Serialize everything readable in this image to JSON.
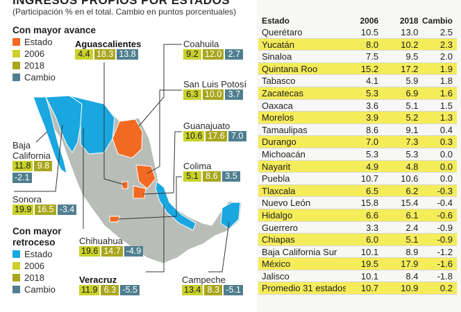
{
  "header": {
    "title": "INGRESOS PROPIOS POR ESTADOS",
    "subtitle": "(Participación % en el total. Cambio en puntos porcentuales)"
  },
  "colors": {
    "estado_avance": "#f26a21",
    "estado_retroceso": "#1aa7e0",
    "y2006": "#c9d12c",
    "y2018": "#a9a61d",
    "cambio": "#4f7f8f",
    "highlight_row": "#f5ec5a"
  },
  "legend_avance": {
    "heading": "Con mayor avance",
    "items": [
      "Estado",
      "2006",
      "2018",
      "Cambio"
    ]
  },
  "legend_retroceso": {
    "heading_line1": "Con mayor",
    "heading_line2": "retroceso",
    "items": [
      "Estado",
      "2006",
      "2018",
      "Cambio"
    ]
  },
  "callouts": {
    "aguascalientes": {
      "name": "Aguascalientes",
      "v2006": "4.4",
      "v2018": "18.3",
      "cambio": "13.8"
    },
    "coahuila": {
      "name": "Coahuila",
      "v2006": "9.2",
      "v2018": "12.0",
      "cambio": "2.7"
    },
    "san_luis_potosi": {
      "name": "San Luis Potosí",
      "v2006": "6.3",
      "v2018": "10.0",
      "cambio": "3.7"
    },
    "guanajuato": {
      "name": "Guanajuato",
      "v2006": "10.6",
      "v2018": "17.6",
      "cambio": "7.0"
    },
    "colima": {
      "name": "Colima",
      "v2006": "5.1",
      "v2018": "8.6",
      "cambio": "3.5"
    },
    "baja_california": {
      "name_line1": "Baja",
      "name_line2": "California",
      "v2006": "11.8",
      "v2018": "9.8",
      "cambio": "-2.1"
    },
    "sonora": {
      "name": "Sonora",
      "v2006": "19.9",
      "v2018": "16.5",
      "cambio": "-3.4"
    },
    "chihuahua": {
      "name": "Chihuahua",
      "v2006": "19.6",
      "v2018": "14.7",
      "cambio": "-4.9"
    },
    "veracruz": {
      "name": "Veracruz",
      "v2006": "11.9",
      "v2018": "6.3",
      "cambio": "-5.5"
    },
    "campeche": {
      "name": "Campeche",
      "v2006": "13.4",
      "v2018": "8.3",
      "cambio": "-5.1"
    }
  },
  "table": {
    "headers": [
      "Estado",
      "2006",
      "2018",
      "Cambio"
    ],
    "rows": [
      [
        "Querétaro",
        "10.5",
        "13.0",
        "2.5"
      ],
      [
        "Yucatán",
        "8.0",
        "10.2",
        "2.3"
      ],
      [
        "Sinaloa",
        "7.5",
        "9.5",
        "2.0"
      ],
      [
        "Quintana Roo",
        "15.2",
        "17.2",
        "1.9"
      ],
      [
        "Tabasco",
        "4.1",
        "5.9",
        "1.8"
      ],
      [
        "Zacatecas",
        "5.3",
        "6.9",
        "1.6"
      ],
      [
        "Oaxaca",
        "3.6",
        "5.1",
        "1.5"
      ],
      [
        "Morelos",
        "3.9",
        "5.2",
        "1.3"
      ],
      [
        "Tamaulipas",
        "8.6",
        "9.1",
        "0.4"
      ],
      [
        "Durango",
        "7.0",
        "7.3",
        "0.3"
      ],
      [
        "Michoacán",
        "5.3",
        "5.3",
        "0.0"
      ],
      [
        "Nayarit",
        "4.9",
        "4.8",
        "0.0"
      ],
      [
        "Puebla",
        "10.7",
        "10.6",
        "0.0"
      ],
      [
        "Tlaxcala",
        "6.5",
        "6.2",
        "-0.3"
      ],
      [
        "Nuevo León",
        "15.8",
        "15.4",
        "-0.4"
      ],
      [
        "Hidalgo",
        "6.6",
        "6.1",
        "-0.6"
      ],
      [
        "Guerrero",
        "3.3",
        "2.4",
        "-0.9"
      ],
      [
        "Chiapas",
        "6.0",
        "5.1",
        "-0.9"
      ],
      [
        "Baja California Sur",
        "10.1",
        "8.9",
        "-1.2"
      ],
      [
        "México",
        "19.5",
        "17.9",
        "-1.6"
      ],
      [
        "Jalisco",
        "10.1",
        "8.4",
        "-1.8"
      ],
      [
        "Promedio 31 estados*",
        "10.7",
        "10.9",
        "0.2"
      ]
    ]
  }
}
